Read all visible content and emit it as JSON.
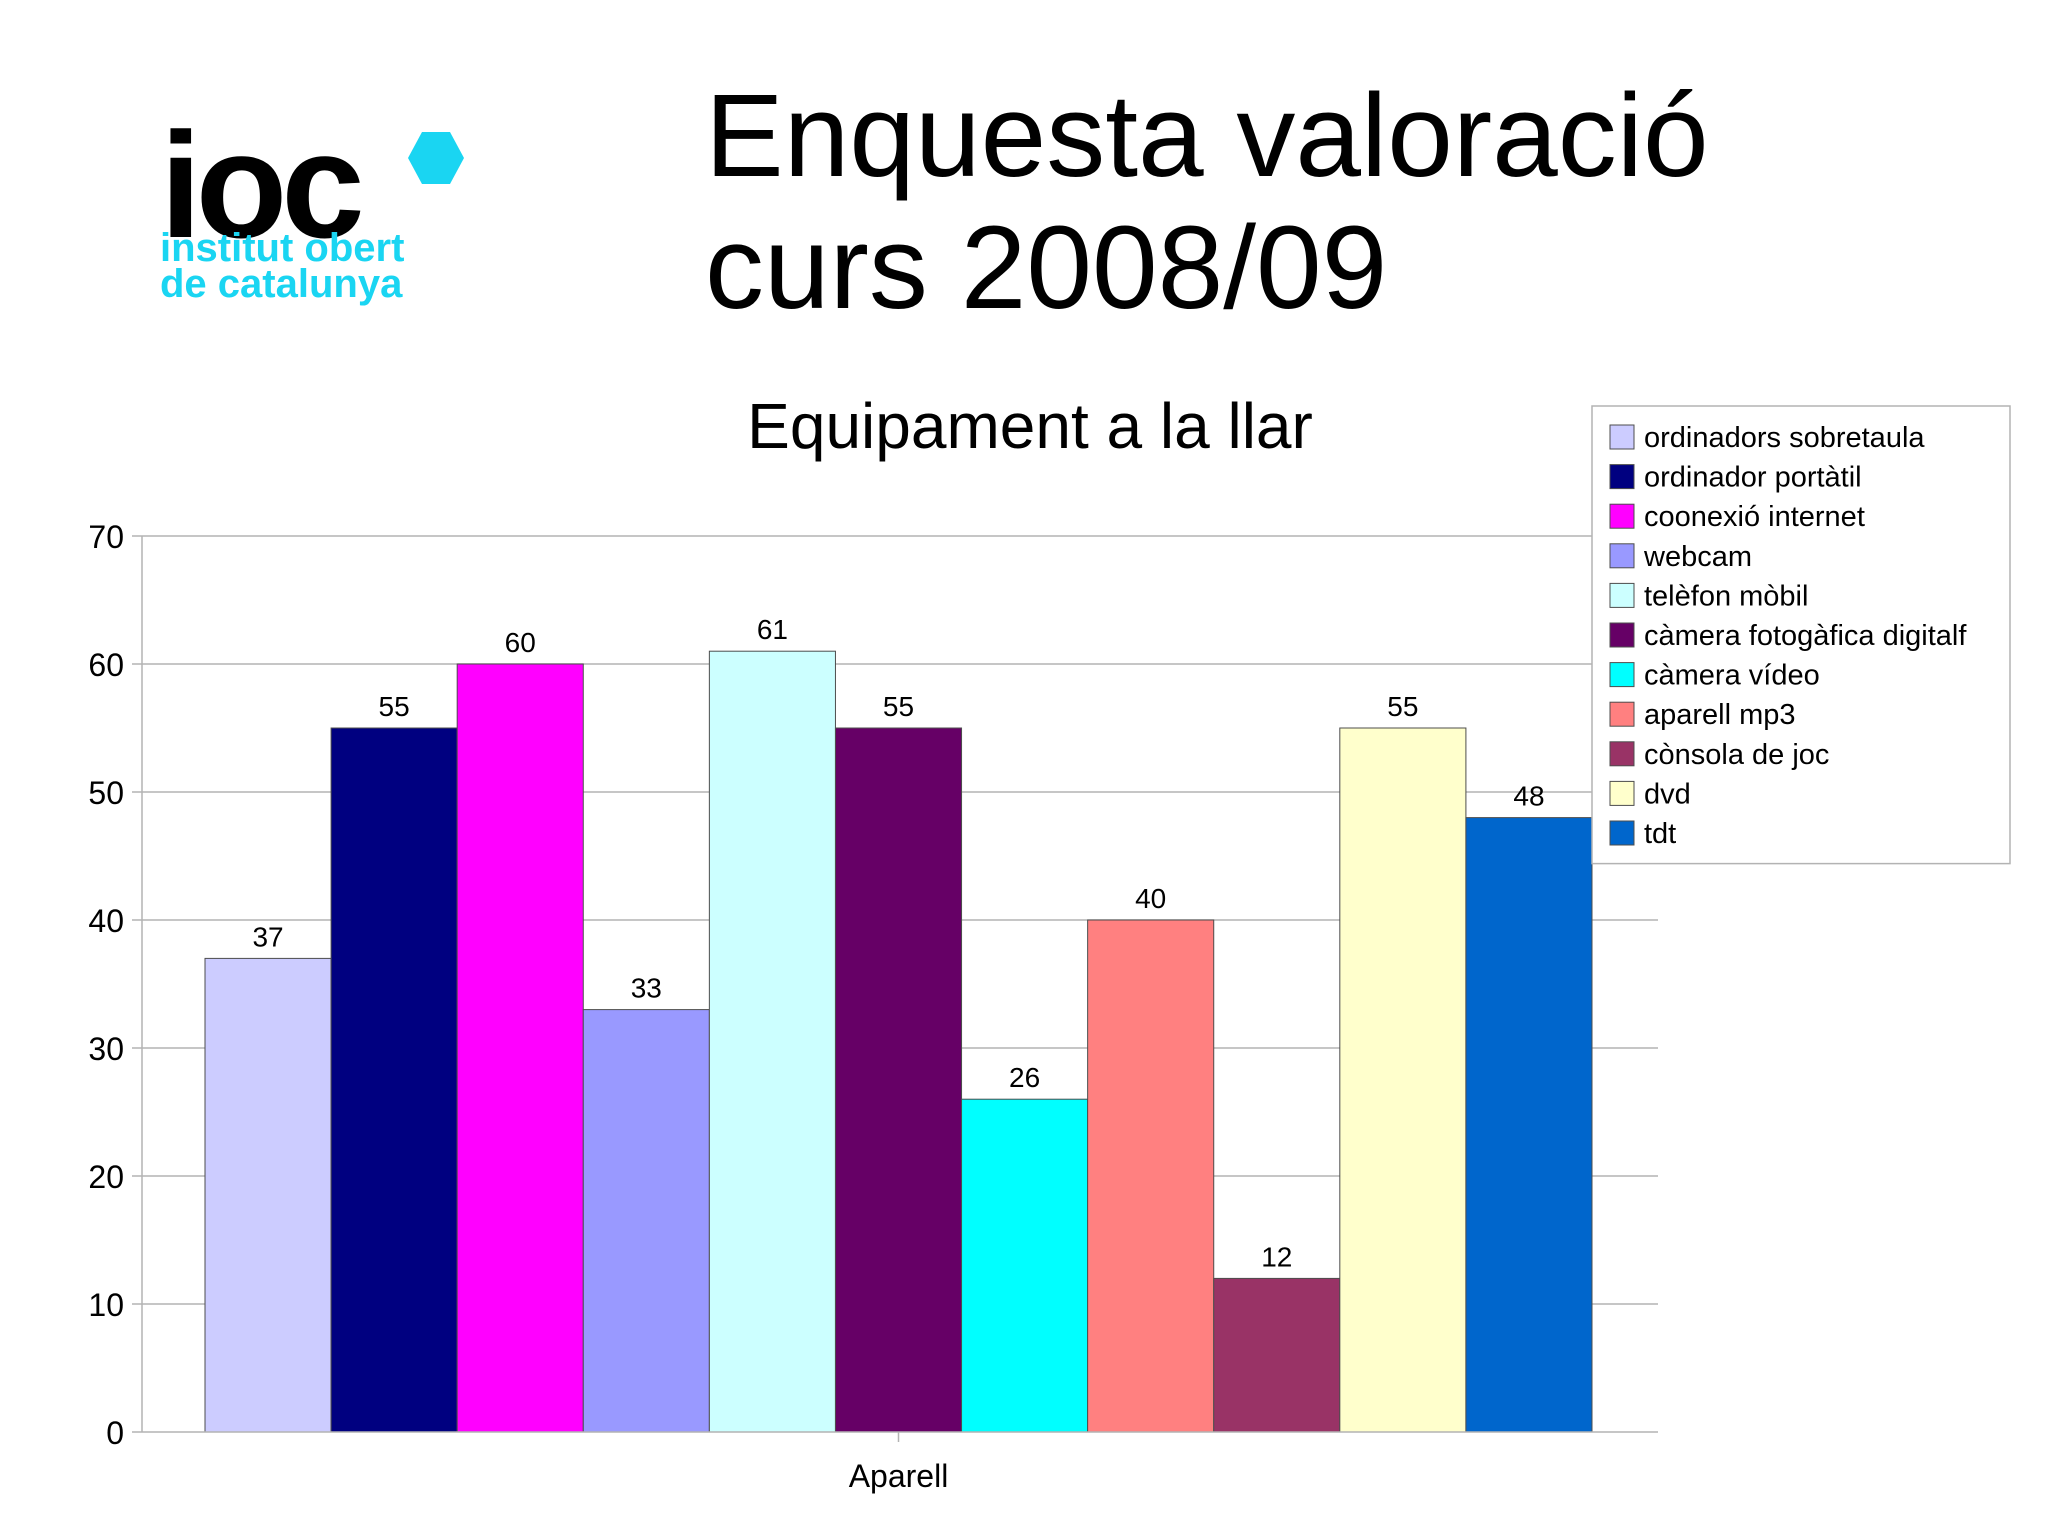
{
  "slide": {
    "title_line1": "Enquesta valoració",
    "title_line2": "curs 2008/09"
  },
  "logo": {
    "wordmark": "ioc",
    "line1": "institut obert",
    "line2": "de catalunya",
    "accent_color": "#1ad5f2"
  },
  "chart_data": {
    "type": "bar",
    "title": "Equipament a la llar",
    "xlabel": "Aparell",
    "ylabel": "",
    "ylim": [
      0,
      70
    ],
    "yticks": [
      0,
      10,
      20,
      30,
      40,
      50,
      60,
      70
    ],
    "categories": [
      "Aparell"
    ],
    "grid": true,
    "legend_position": "top-right",
    "series": [
      {
        "name": "ordinadors sobretaula",
        "values": [
          37
        ],
        "color": "#ccccff"
      },
      {
        "name": "ordinador portàtil",
        "values": [
          55
        ],
        "color": "#000080"
      },
      {
        "name": "coonexió internet",
        "values": [
          60
        ],
        "color": "#ff00ff"
      },
      {
        "name": "webcam",
        "values": [
          33
        ],
        "color": "#9999ff"
      },
      {
        "name": "telèfon mòbil",
        "values": [
          61
        ],
        "color": "#ccffff"
      },
      {
        "name": "càmera fotogàfica digitalf",
        "values": [
          55
        ],
        "color": "#660066"
      },
      {
        "name": "càmera vídeo",
        "values": [
          26
        ],
        "color": "#00ffff"
      },
      {
        "name": "aparell mp3",
        "values": [
          40
        ],
        "color": "#ff8080"
      },
      {
        "name": "cònsola de joc",
        "values": [
          12
        ],
        "color": "#993366"
      },
      {
        "name": "dvd",
        "values": [
          55
        ],
        "color": "#ffffcc"
      },
      {
        "name": "tdt",
        "values": [
          48
        ],
        "color": "#0066cc"
      }
    ]
  }
}
